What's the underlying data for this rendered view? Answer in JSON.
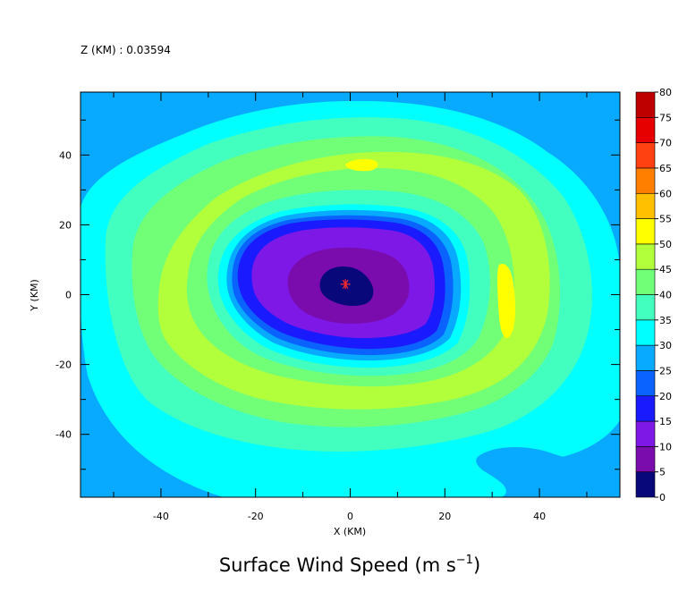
{
  "chart_data": {
    "type": "contour",
    "annotation": "Z (KM) : 0.03594",
    "title": "Surface Wind Speed",
    "title_units": {
      "prefix": "(m s",
      "exponent": "−1",
      "suffix": ")"
    },
    "xlabel": "X (KM)",
    "ylabel": "Y (KM)",
    "xlim": [
      -57,
      57
    ],
    "ylim": [
      -58,
      58
    ],
    "x_ticks": [
      -40,
      -20,
      0,
      20,
      40
    ],
    "y_ticks": [
      -40,
      -20,
      0,
      20,
      40
    ],
    "center_marker": {
      "x": -1,
      "y": 3
    },
    "legend": {
      "levels": [
        0,
        5,
        10,
        15,
        20,
        25,
        30,
        35,
        40,
        45,
        50,
        55,
        60,
        65,
        70,
        75,
        80
      ],
      "colors": [
        "#08087a",
        "#7a0cae",
        "#7e18e6",
        "#1a1aff",
        "#0a62ff",
        "#08aaff",
        "#00ffff",
        "#42ffc0",
        "#72ff78",
        "#b2ff3c",
        "#ffff00",
        "#ffc000",
        "#ff8000",
        "#ff4010",
        "#e60000",
        "#bf0000",
        "#8b0000"
      ]
    }
  }
}
